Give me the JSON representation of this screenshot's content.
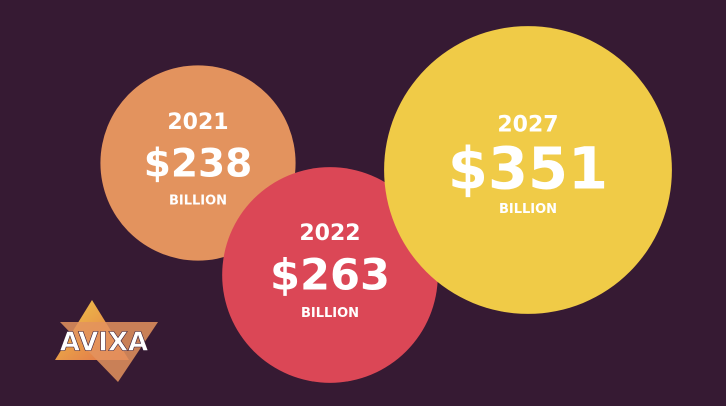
{
  "chart_data": {
    "type": "bubble",
    "categories": [
      "2021",
      "2022",
      "2027"
    ],
    "values": [
      238,
      263,
      351
    ],
    "value_labels": [
      "$238",
      "$263",
      "$351"
    ],
    "unit": "BILLION",
    "colors": [
      "#e3935e",
      "#db4756",
      "#f0cb47"
    ],
    "logo": "AVIXA"
  }
}
